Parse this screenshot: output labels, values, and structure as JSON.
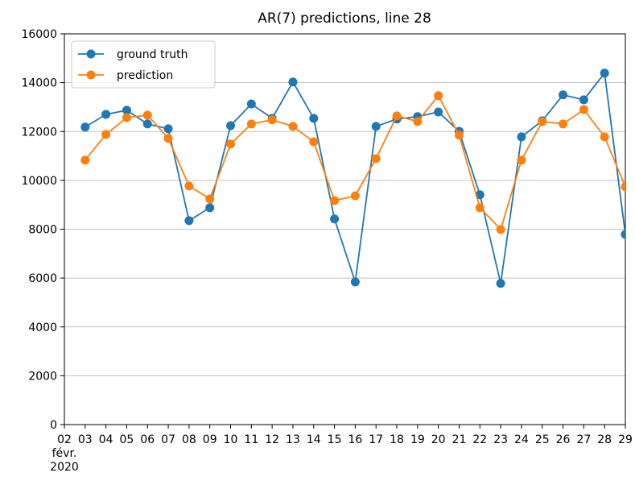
{
  "chart_data": {
    "type": "line",
    "title": "AR(7) predictions, line 28",
    "x": [
      "2020-02-03",
      "2020-02-04",
      "2020-02-05",
      "2020-02-06",
      "2020-02-07",
      "2020-02-08",
      "2020-02-09",
      "2020-02-10",
      "2020-02-11",
      "2020-02-12",
      "2020-02-13",
      "2020-02-14",
      "2020-02-15",
      "2020-02-16",
      "2020-02-17",
      "2020-02-18",
      "2020-02-19",
      "2020-02-20",
      "2020-02-21",
      "2020-02-22",
      "2020-02-23",
      "2020-02-24",
      "2020-02-25",
      "2020-02-26",
      "2020-02-27",
      "2020-02-28",
      "2020-02-29"
    ],
    "series": [
      {
        "name": "ground truth",
        "color": "#1f77b4",
        "values": [
          12180,
          12700,
          12870,
          12310,
          12110,
          8350,
          8880,
          12240,
          13130,
          12540,
          14030,
          12540,
          8420,
          5840,
          12210,
          12510,
          12610,
          12800,
          12010,
          9410,
          5780,
          11780,
          12440,
          13500,
          13300,
          14390,
          7790
        ]
      },
      {
        "name": "prediction",
        "color": "#ff7f0e",
        "values": [
          10830,
          11880,
          12570,
          12670,
          11720,
          9770,
          9240,
          11490,
          12310,
          12480,
          12210,
          11580,
          9170,
          9370,
          10890,
          12640,
          12410,
          13470,
          11850,
          8880,
          7990,
          10830,
          12410,
          12310,
          12900,
          11780,
          9740
        ]
      }
    ],
    "xlim": [
      "2020-02-02",
      "2020-02-29"
    ],
    "xticks": [
      {
        "value": "2020-02-02",
        "label": "02\nfévr.\n2020"
      },
      {
        "value": "2020-02-03",
        "label": "03"
      },
      {
        "value": "2020-02-04",
        "label": "04"
      },
      {
        "value": "2020-02-05",
        "label": "05"
      },
      {
        "value": "2020-02-06",
        "label": "06"
      },
      {
        "value": "2020-02-07",
        "label": "07"
      },
      {
        "value": "2020-02-08",
        "label": "08"
      },
      {
        "value": "2020-02-09",
        "label": "09"
      },
      {
        "value": "2020-02-10",
        "label": "10"
      },
      {
        "value": "2020-02-11",
        "label": "11"
      },
      {
        "value": "2020-02-12",
        "label": "12"
      },
      {
        "value": "2020-02-13",
        "label": "13"
      },
      {
        "value": "2020-02-14",
        "label": "14"
      },
      {
        "value": "2020-02-15",
        "label": "15"
      },
      {
        "value": "2020-02-16",
        "label": "16"
      },
      {
        "value": "2020-02-17",
        "label": "17"
      },
      {
        "value": "2020-02-18",
        "label": "18"
      },
      {
        "value": "2020-02-19",
        "label": "19"
      },
      {
        "value": "2020-02-20",
        "label": "20"
      },
      {
        "value": "2020-02-21",
        "label": "21"
      },
      {
        "value": "2020-02-22",
        "label": "22"
      },
      {
        "value": "2020-02-23",
        "label": "23"
      },
      {
        "value": "2020-02-24",
        "label": "24"
      },
      {
        "value": "2020-02-25",
        "label": "25"
      },
      {
        "value": "2020-02-26",
        "label": "26"
      },
      {
        "value": "2020-02-27",
        "label": "27"
      },
      {
        "value": "2020-02-28",
        "label": "28"
      },
      {
        "value": "2020-02-29",
        "label": "29"
      }
    ],
    "ylim": [
      0,
      16000
    ],
    "yticks": [
      0,
      2000,
      4000,
      6000,
      8000,
      10000,
      12000,
      14000,
      16000
    ],
    "grid": "y",
    "legend": "upper left"
  }
}
